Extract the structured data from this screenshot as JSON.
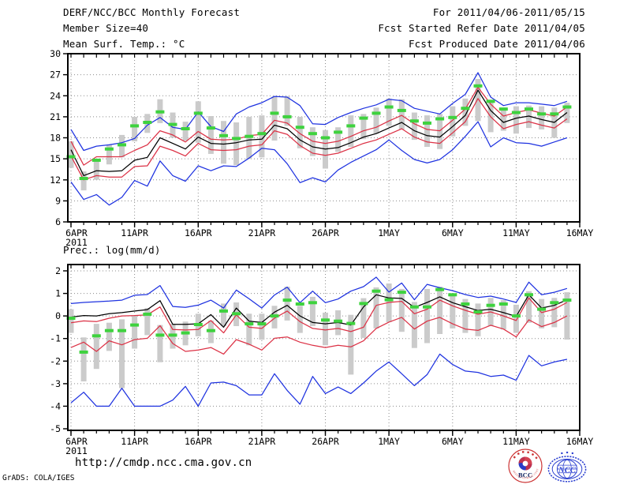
{
  "header": {
    "title": "DERF/NCC/BCC Monthly Forecast",
    "member_size": "Member Size=40",
    "for_period": "For 2011/04/06-2011/05/15",
    "fcst_refer": "Fcst Started Refer Date 2011/04/05",
    "fcst_produced": "Fcst Produced Date 2011/04/06"
  },
  "footer": {
    "url": "http://cmdp.ncc.cma.gov.cn",
    "credit": "GrADS: COLA/IGES"
  },
  "logos": {
    "bcc": {
      "label": "BCC"
    },
    "ncc": {
      "label": "NCC"
    }
  },
  "colors": {
    "max_min": "#1e32e0",
    "spread": "#dc3246",
    "mean": "#000000",
    "obs": "#3ed23e",
    "bars": "#cbcbcb",
    "grid": "#8c8c8c"
  },
  "chart_data": [
    {
      "type": "line",
      "title": "Mean Surf. Temp.: °C",
      "x_year_label": "2011",
      "xticklabels": [
        "6APR",
        "11APR",
        "16APR",
        "21APR",
        "26APR",
        "1MAY",
        "6MAY",
        "11MAY",
        "16MAY"
      ],
      "yticks": [
        6,
        9,
        12,
        15,
        18,
        21,
        24,
        27,
        30
      ],
      "ylim": [
        6,
        30
      ],
      "n_days": 40,
      "series": [
        {
          "name": "ensemble-max",
          "color_key": "max_min",
          "values": [
            19.2,
            16.2,
            16.8,
            17.0,
            17.3,
            17.9,
            19.8,
            20.9,
            19.5,
            19.2,
            21.7,
            19.6,
            18.9,
            21.4,
            22.4,
            23.0,
            23.9,
            23.8,
            22.6,
            20.0,
            19.9,
            20.9,
            21.6,
            22.2,
            22.7,
            23.5,
            23.3,
            22.2,
            21.8,
            21.4,
            22.9,
            24.2,
            27.3,
            23.8,
            22.6,
            23.0,
            23.0,
            22.8,
            22.6,
            23.2
          ]
        },
        {
          "name": "spread-upper",
          "color_key": "spread",
          "values": [
            17.5,
            14.1,
            15.3,
            15.3,
            15.3,
            16.2,
            17.0,
            19.0,
            18.4,
            17.4,
            18.9,
            17.8,
            17.7,
            17.8,
            18.3,
            18.5,
            20.5,
            20.1,
            18.6,
            17.5,
            17.2,
            17.5,
            18.2,
            19.0,
            19.5,
            20.4,
            21.2,
            20.0,
            19.2,
            19.0,
            20.5,
            22.1,
            25.2,
            22.8,
            21.1,
            21.6,
            22.0,
            21.5,
            21.1,
            22.4
          ]
        },
        {
          "name": "ensemble-mean",
          "color_key": "mean",
          "values": [
            16.3,
            12.6,
            13.3,
            13.2,
            13.3,
            14.8,
            15.2,
            18.0,
            17.2,
            16.4,
            18.1,
            17.2,
            17.1,
            17.3,
            17.7,
            17.8,
            19.8,
            19.3,
            17.7,
            16.7,
            16.4,
            16.6,
            17.3,
            18.1,
            18.6,
            19.4,
            20.2,
            19.0,
            18.3,
            18.1,
            19.6,
            21.2,
            24.8,
            21.9,
            20.2,
            20.8,
            21.1,
            20.6,
            20.2,
            21.6
          ]
        },
        {
          "name": "spread-lower",
          "color_key": "spread",
          "values": [
            15.4,
            12.0,
            12.6,
            12.4,
            12.4,
            13.9,
            14.0,
            16.8,
            16.2,
            15.4,
            17.2,
            16.3,
            16.2,
            16.3,
            16.8,
            17.0,
            19.0,
            18.5,
            16.9,
            15.8,
            15.5,
            15.8,
            16.5,
            17.2,
            17.7,
            18.5,
            19.3,
            18.1,
            17.4,
            17.2,
            18.7,
            20.3,
            23.6,
            21.0,
            19.3,
            19.9,
            20.3,
            19.8,
            19.4,
            20.7
          ]
        },
        {
          "name": "ensemble-min",
          "color_key": "max_min",
          "values": [
            11.7,
            9.2,
            9.9,
            8.4,
            9.5,
            11.9,
            11.1,
            14.7,
            12.6,
            11.8,
            14.0,
            13.3,
            14.0,
            13.9,
            15.1,
            16.5,
            16.3,
            14.3,
            11.6,
            12.3,
            11.7,
            13.4,
            14.5,
            15.4,
            16.3,
            17.7,
            16.2,
            14.9,
            14.4,
            14.9,
            16.3,
            18.2,
            20.3,
            16.7,
            18.0,
            17.3,
            17.2,
            16.8,
            17.4,
            18.0
          ]
        }
      ],
      "obs_dashes": {
        "name": "observation-dashes",
        "color_key": "obs",
        "values": [
          15.3,
          12.2,
          14.8,
          16.4,
          17.0,
          19.7,
          20.2,
          21.7,
          19.9,
          19.3,
          21.5,
          19.4,
          18.3,
          17.9,
          18.2,
          18.6,
          21.5,
          21.0,
          19.5,
          18.6,
          18.0,
          18.8,
          19.7,
          20.8,
          21.5,
          22.4,
          21.9,
          20.4,
          20.1,
          20.7,
          20.9,
          22.2,
          25.4,
          23.2,
          22.1,
          21.6,
          22.1,
          21.4,
          21.4,
          22.4
        ]
      },
      "spread_bars": {
        "name": "member-spread-bars",
        "color_key": "bars",
        "lo": [
          13.7,
          10.5,
          12.0,
          14.2,
          15.2,
          17.5,
          18.7,
          20.1,
          18.0,
          17.6,
          17.3,
          15.7,
          14.3,
          14.1,
          15.0,
          15.2,
          17.6,
          19.7,
          16.5,
          15.4,
          13.6,
          16.0,
          16.7,
          17.8,
          18.6,
          19.7,
          19.2,
          17.7,
          16.7,
          16.4,
          18.2,
          19.7,
          20.4,
          18.8,
          19.0,
          18.6,
          19.4,
          19.2,
          18.0,
          20.1
        ],
        "hi": [
          17.5,
          13.2,
          14.9,
          17.0,
          18.4,
          21.0,
          21.4,
          23.5,
          21.6,
          20.3,
          23.2,
          21.1,
          20.4,
          20.2,
          21.0,
          21.2,
          23.9,
          23.9,
          21.0,
          19.5,
          19.1,
          19.5,
          21.2,
          21.4,
          22.3,
          23.6,
          23.5,
          21.6,
          21.2,
          21.4,
          22.5,
          23.6,
          26.4,
          23.4,
          22.3,
          22.5,
          22.6,
          22.5,
          22.3,
          23.0
        ]
      }
    },
    {
      "type": "line",
      "title": "Prec.: log(mm/d)",
      "x_year_label": "2011",
      "xticklabels": [
        "6APR",
        "11APR",
        "16APR",
        "21APR",
        "26APR",
        "1MAY",
        "6MAY",
        "11MAY",
        "16MAY"
      ],
      "yticks": [
        -5,
        -4,
        -3,
        -2,
        -1,
        0,
        1,
        2
      ],
      "ylim": [
        -5,
        2
      ],
      "n_days": 40,
      "series": [
        {
          "name": "ensemble-max",
          "color_key": "max_min",
          "values": [
            0.55,
            0.6,
            0.63,
            0.66,
            0.7,
            0.92,
            0.95,
            1.35,
            0.42,
            0.38,
            0.48,
            0.7,
            0.35,
            1.15,
            0.76,
            0.35,
            0.93,
            1.28,
            0.59,
            1.1,
            0.59,
            0.75,
            1.1,
            1.3,
            1.72,
            1.06,
            1.46,
            0.72,
            1.4,
            1.25,
            1.12,
            0.95,
            0.82,
            0.88,
            0.75,
            0.6,
            1.5,
            0.94,
            1.05,
            1.22
          ]
        },
        {
          "name": "spread-upper",
          "color_key": "spread",
          "values": [
            -0.3,
            -0.22,
            -0.25,
            -0.1,
            0.0,
            0.02,
            0.05,
            0.4,
            -0.6,
            -0.62,
            -0.6,
            -0.2,
            -0.75,
            0.05,
            -0.5,
            -0.55,
            -0.1,
            0.22,
            -0.25,
            -0.55,
            -0.62,
            -0.55,
            -0.69,
            -0.5,
            0.47,
            0.6,
            0.65,
            0.1,
            0.3,
            0.7,
            0.45,
            0.25,
            0.08,
            0.18,
            0.0,
            -0.2,
            0.8,
            0.15,
            0.3,
            0.6
          ]
        },
        {
          "name": "ensemble-mean",
          "color_key": "mean",
          "values": [
            -0.05,
            0.02,
            0.0,
            0.1,
            0.15,
            0.22,
            0.28,
            0.68,
            -0.37,
            -0.37,
            -0.35,
            0.06,
            -0.5,
            0.35,
            -0.23,
            -0.29,
            0.17,
            0.47,
            0.0,
            -0.29,
            -0.35,
            -0.29,
            -0.4,
            0.4,
            0.94,
            0.8,
            0.78,
            0.38,
            0.6,
            0.85,
            0.59,
            0.41,
            0.24,
            0.3,
            0.15,
            -0.02,
            0.94,
            0.35,
            0.47,
            0.72
          ]
        },
        {
          "name": "spread-lower",
          "color_key": "spread",
          "values": [
            -1.4,
            -1.16,
            -1.57,
            -1.1,
            -1.28,
            -1.05,
            -0.99,
            -0.43,
            -1.22,
            -1.57,
            -1.51,
            -1.4,
            -1.69,
            -1.05,
            -1.25,
            -1.51,
            -0.99,
            -0.93,
            -1.16,
            -1.3,
            -1.4,
            -1.3,
            -1.37,
            -1.1,
            -0.55,
            -0.27,
            -0.06,
            -0.58,
            -0.23,
            -0.06,
            -0.35,
            -0.58,
            -0.64,
            -0.41,
            -0.58,
            -0.93,
            -0.17,
            -0.47,
            -0.29,
            0.0
          ]
        },
        {
          "name": "ensemble-min",
          "color_key": "max_min",
          "values": [
            -3.85,
            -3.38,
            -4.0,
            -4.0,
            -3.2,
            -4.0,
            -4.0,
            -4.0,
            -3.73,
            -3.12,
            -4.0,
            -2.97,
            -2.93,
            -3.09,
            -3.5,
            -3.5,
            -2.56,
            -3.3,
            -3.91,
            -2.68,
            -3.44,
            -3.15,
            -3.44,
            -2.97,
            -2.44,
            -2.04,
            -2.56,
            -3.09,
            -2.6,
            -1.69,
            -2.15,
            -2.44,
            -2.5,
            -2.68,
            -2.62,
            -2.85,
            -1.75,
            -2.21,
            -2.04,
            -1.92
          ]
        }
      ],
      "obs_dashes": {
        "name": "observation-dashes",
        "color_key": "obs",
        "values": [
          -0.1,
          -1.6,
          -0.88,
          -0.65,
          -0.65,
          -0.4,
          0.08,
          -0.85,
          -0.85,
          -0.75,
          -0.38,
          -0.65,
          0.22,
          0.1,
          -0.35,
          -0.35,
          0.0,
          0.7,
          0.53,
          0.59,
          -0.18,
          -0.23,
          -0.33,
          0.55,
          1.1,
          0.72,
          1.05,
          0.4,
          0.4,
          1.17,
          0.94,
          0.53,
          0.18,
          0.47,
          0.53,
          0.0,
          0.94,
          0.3,
          0.59,
          0.7
        ]
      },
      "spread_bars": {
        "name": "member-spread-bars",
        "color_key": "bars",
        "lo": [
          -0.75,
          -2.9,
          -2.35,
          -1.55,
          -3.2,
          -1.45,
          -0.85,
          -2.05,
          -1.45,
          -1.3,
          -0.9,
          -1.2,
          -0.45,
          -0.45,
          -1.3,
          -1.05,
          -0.55,
          -0.2,
          -0.75,
          -0.45,
          -1.3,
          -0.85,
          -2.6,
          -0.97,
          -0.55,
          -0.27,
          -0.7,
          -1.42,
          -1.2,
          -0.8,
          -0.55,
          -0.75,
          -0.9,
          -0.45,
          -0.6,
          -0.75,
          -0.3,
          -0.55,
          -0.5,
          -1.05
        ],
        "hi": [
          0.3,
          -0.95,
          -0.35,
          -0.3,
          -0.15,
          0.0,
          0.35,
          -0.4,
          -0.35,
          -0.25,
          0.1,
          -0.2,
          0.55,
          0.6,
          0.1,
          0.1,
          0.45,
          1.3,
          0.45,
          0.85,
          0.15,
          0.25,
          0.05,
          0.79,
          1.27,
          1.44,
          1.2,
          0.62,
          1.2,
          1.3,
          1.0,
          0.75,
          0.55,
          0.8,
          0.7,
          0.5,
          1.1,
          0.75,
          0.8,
          1.05
        ]
      }
    }
  ]
}
